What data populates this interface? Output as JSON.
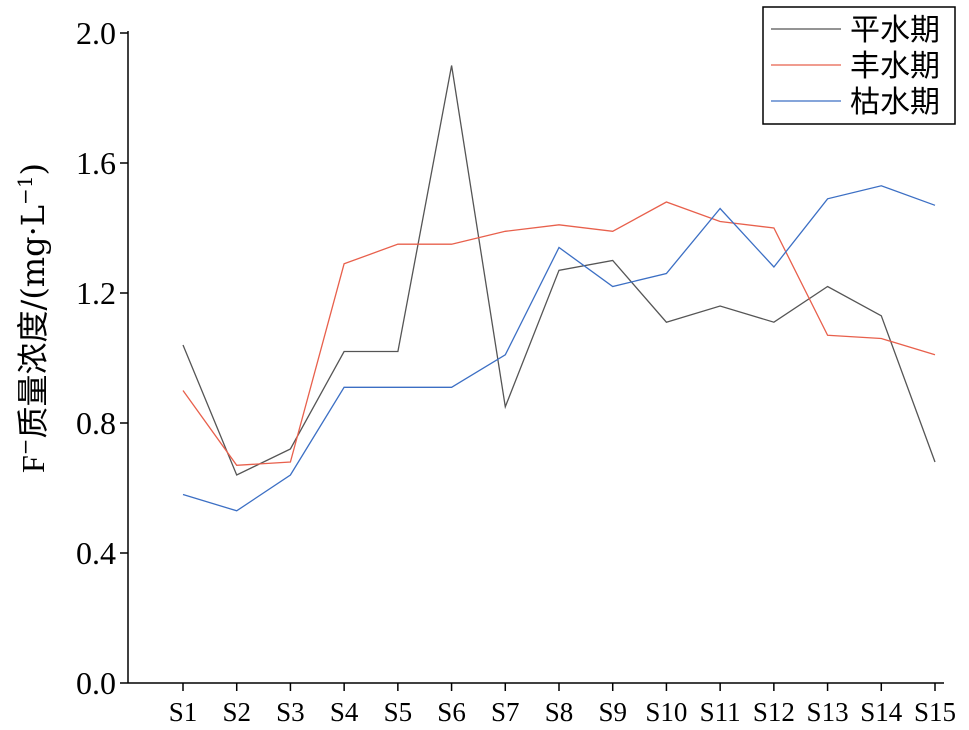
{
  "chart_data": {
    "type": "line",
    "ylabel_main": "F",
    "ylabel_sup": "−",
    "ylabel_rest": "质量浓度/(mg·L",
    "ylabel_unit_sup": "−1",
    "ylabel_close": ")",
    "categories": [
      "S1",
      "S2",
      "S3",
      "S4",
      "S5",
      "S6",
      "S7",
      "S8",
      "S9",
      "S10",
      "S11",
      "S12",
      "S13",
      "S14",
      "S15"
    ],
    "y_ticks": [
      "0.0",
      "0.4",
      "0.8",
      "1.2",
      "1.6",
      "2.0"
    ],
    "ylim": [
      0,
      2.0
    ],
    "legend_position": "top-right",
    "series": [
      {
        "name": "平水期",
        "color": "#555555",
        "values": [
          1.04,
          0.64,
          0.72,
          1.02,
          1.02,
          1.9,
          0.85,
          1.27,
          1.3,
          1.11,
          1.16,
          1.11,
          1.22,
          1.13,
          0.68
        ]
      },
      {
        "name": "丰水期",
        "color": "#e8604c",
        "values": [
          0.9,
          0.67,
          0.68,
          1.29,
          1.35,
          1.35,
          1.39,
          1.41,
          1.39,
          1.48,
          1.42,
          1.4,
          1.07,
          1.06,
          1.01
        ]
      },
      {
        "name": "枯水期",
        "color": "#3c6fc4",
        "values": [
          0.58,
          0.53,
          0.64,
          0.91,
          0.91,
          0.91,
          1.01,
          1.34,
          1.22,
          1.26,
          1.46,
          1.28,
          1.49,
          1.53,
          1.47
        ]
      }
    ]
  }
}
